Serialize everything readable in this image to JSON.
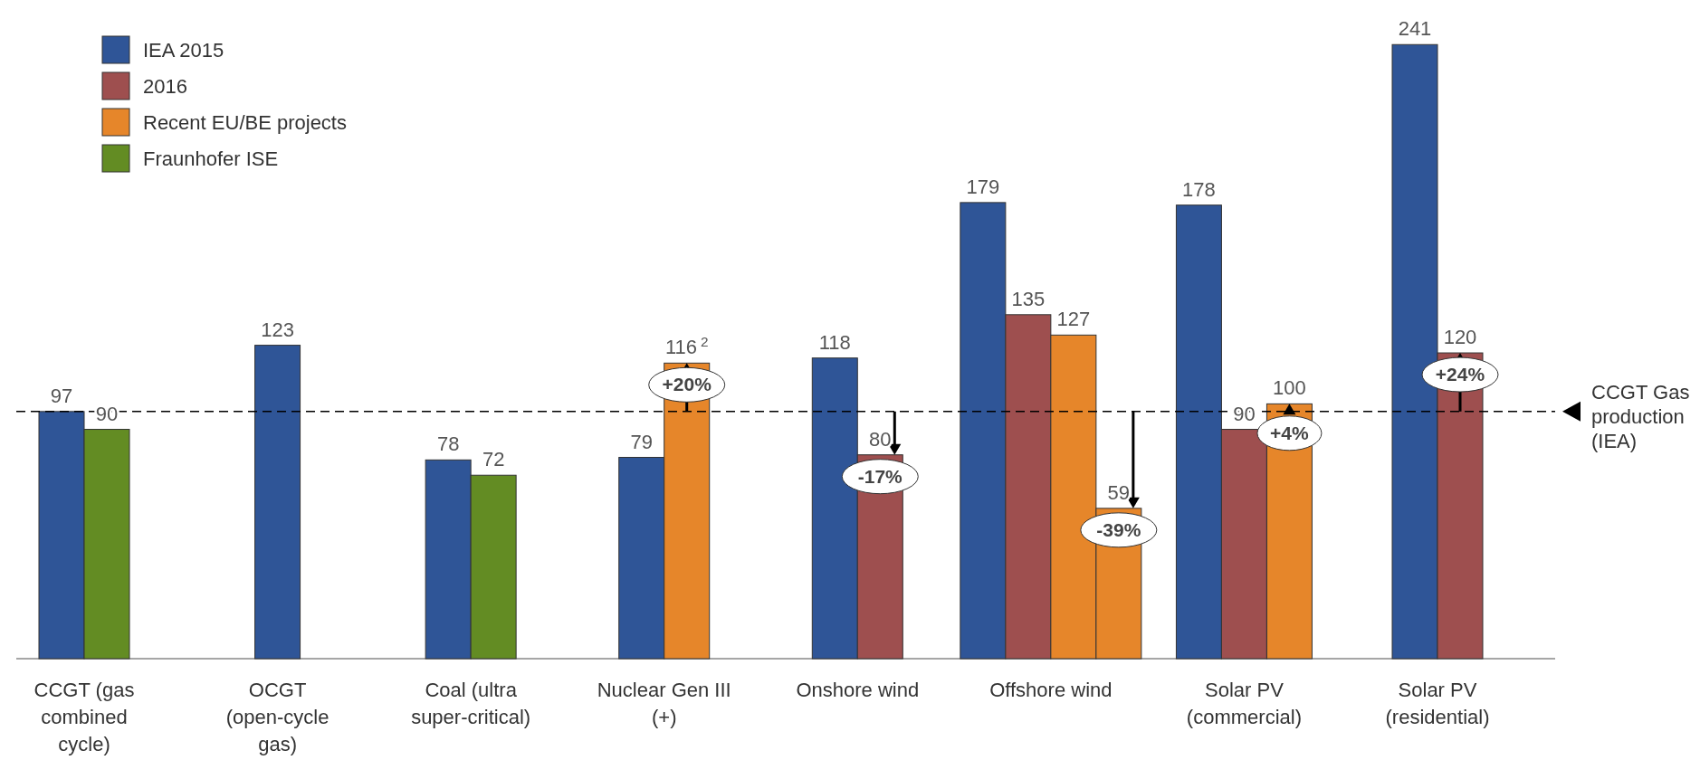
{
  "chart_data": {
    "type": "bar",
    "categories": [
      "CCGT (gas combined cycle)",
      "OCGT (open-cycle gas)",
      "Coal (ultra super-critical)",
      "Nuclear Gen III (+)",
      "Onshore wind",
      "Offshore wind",
      "Solar PV (commercial)",
      "Solar PV (residential)"
    ],
    "series": [
      {
        "name": "IEA 2015",
        "color": "#2f5597",
        "values": [
          97,
          123,
          78,
          79,
          118,
          179,
          178,
          241
        ],
        "value_labels": [
          "97",
          "123",
          "78",
          "79",
          "118",
          "179",
          "178",
          "241"
        ]
      },
      {
        "name": "2016",
        "color": "#9e4f4f",
        "values": [
          null,
          null,
          null,
          null,
          80,
          135,
          90,
          120
        ],
        "value_labels": [
          null,
          null,
          null,
          null,
          "80",
          "135",
          "90",
          "120"
        ]
      },
      {
        "name": "Recent EU/BE projects",
        "color": "#e6862a",
        "values": [
          null,
          null,
          null,
          116,
          null,
          127,
          100,
          null
        ],
        "value_labels": [
          null,
          null,
          null,
          "116$^{2}$",
          null,
          "127",
          "100",
          null
        ]
      },
      {
        "color": "#e6862a",
        "values": [
          null,
          null,
          null,
          null,
          null,
          59,
          null,
          null
        ],
        "value_labels": [
          null,
          null,
          null,
          null,
          null,
          "59",
          null,
          null
        ]
      },
      {
        "name": "Fraunhofer ISE",
        "color": "#638c23",
        "values": [
          90,
          null,
          72,
          null,
          null,
          null,
          null,
          null
        ],
        "value_labels": [
          "90",
          null,
          "72",
          null,
          null,
          null,
          null,
          null
        ]
      }
    ],
    "ylim": [
      0,
      245
    ],
    "ref_lines": [
      {
        "axis": "y",
        "value": 97,
        "label": "CCGT Gas production (IEA)",
        "line_style": "dashed",
        "color": "#000000"
      }
    ],
    "annotations": [
      {
        "text": "+20%",
        "x": "Nuclear Gen III (+)",
        "y": 116
      },
      {
        "text": "-17%",
        "x": "Onshore wind",
        "y": 80
      },
      {
        "text": "-39%",
        "x": "Offshore wind",
        "y": 59
      },
      {
        "text": "+4%",
        "x": "Solar PV (commercial)",
        "y": 97
      },
      {
        "text": "+24%",
        "x": "Solar PV (residential)",
        "y": 120
      }
    ],
    "legend": "top left"
  }
}
